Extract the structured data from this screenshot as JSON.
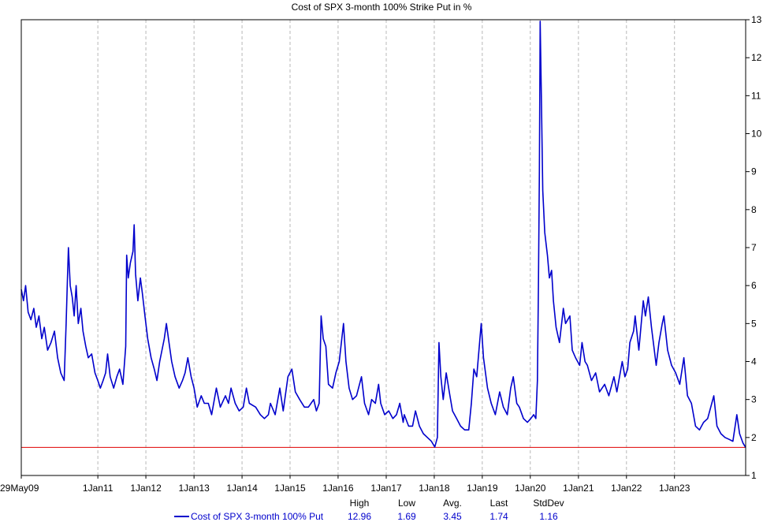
{
  "chart_data": {
    "type": "line",
    "title": "Cost of SPX 3-month 100% Strike Put in %",
    "xlabel": "",
    "ylabel": "",
    "x_range": [
      "2009-05-29",
      "2024-06-25"
    ],
    "ylim": [
      1,
      13
    ],
    "y_ticks": [
      1,
      2,
      3,
      4,
      5,
      6,
      7,
      8,
      9,
      10,
      11,
      12,
      13
    ],
    "y_axis_side": "right",
    "x_ticks": [
      {
        "date": "2009-05-29",
        "label": "29May09"
      },
      {
        "date": "2011-01-01",
        "label": "1Jan11"
      },
      {
        "date": "2012-01-01",
        "label": "1Jan12"
      },
      {
        "date": "2013-01-01",
        "label": "1Jan13"
      },
      {
        "date": "2014-01-01",
        "label": "1Jan14"
      },
      {
        "date": "2015-01-01",
        "label": "1Jan15"
      },
      {
        "date": "2016-01-01",
        "label": "1Jan16"
      },
      {
        "date": "2017-01-01",
        "label": "1Jan17"
      },
      {
        "date": "2018-01-01",
        "label": "1Jan18"
      },
      {
        "date": "2019-01-01",
        "label": "1Jan19"
      },
      {
        "date": "2020-01-01",
        "label": "1Jan20"
      },
      {
        "date": "2021-01-01",
        "label": "1Jan21"
      },
      {
        "date": "2022-01-01",
        "label": "1Jan22"
      },
      {
        "date": "2023-01-01",
        "label": "1Jan23"
      }
    ],
    "grid": "vertical-dashed",
    "reference_line": {
      "value": 1.74,
      "color": "#e00000"
    },
    "series": [
      {
        "name": "Cost of SPX 3-month 100% Put",
        "color": "#0000cc",
        "points": [
          [
            "2009-05-29",
            5.9
          ],
          [
            "2009-06-15",
            5.6
          ],
          [
            "2009-07-01",
            6.0
          ],
          [
            "2009-07-20",
            5.3
          ],
          [
            "2009-08-10",
            5.1
          ],
          [
            "2009-09-01",
            5.4
          ],
          [
            "2009-09-20",
            4.9
          ],
          [
            "2009-10-10",
            5.2
          ],
          [
            "2009-11-01",
            4.6
          ],
          [
            "2009-11-20",
            4.9
          ],
          [
            "2009-12-15",
            4.3
          ],
          [
            "2010-01-10",
            4.5
          ],
          [
            "2010-02-05",
            4.8
          ],
          [
            "2010-03-01",
            4.1
          ],
          [
            "2010-03-25",
            3.7
          ],
          [
            "2010-04-20",
            3.5
          ],
          [
            "2010-05-05",
            5.0
          ],
          [
            "2010-05-15",
            6.2
          ],
          [
            "2010-05-22",
            7.0
          ],
          [
            "2010-06-05",
            6.0
          ],
          [
            "2010-06-20",
            5.7
          ],
          [
            "2010-07-05",
            5.2
          ],
          [
            "2010-07-20",
            6.0
          ],
          [
            "2010-08-05",
            5.0
          ],
          [
            "2010-08-25",
            5.4
          ],
          [
            "2010-09-10",
            4.8
          ],
          [
            "2010-10-01",
            4.4
          ],
          [
            "2010-10-20",
            4.1
          ],
          [
            "2010-11-15",
            4.2
          ],
          [
            "2010-12-10",
            3.7
          ],
          [
            "2011-01-01",
            3.5
          ],
          [
            "2011-01-20",
            3.3
          ],
          [
            "2011-02-10",
            3.5
          ],
          [
            "2011-03-01",
            3.7
          ],
          [
            "2011-03-16",
            4.2
          ],
          [
            "2011-04-05",
            3.6
          ],
          [
            "2011-05-01",
            3.3
          ],
          [
            "2011-05-25",
            3.6
          ],
          [
            "2011-06-15",
            3.8
          ],
          [
            "2011-07-10",
            3.4
          ],
          [
            "2011-08-01",
            4.4
          ],
          [
            "2011-08-08",
            6.8
          ],
          [
            "2011-08-20",
            6.2
          ],
          [
            "2011-09-05",
            6.6
          ],
          [
            "2011-09-25",
            6.9
          ],
          [
            "2011-10-04",
            7.6
          ],
          [
            "2011-10-15",
            6.3
          ],
          [
            "2011-11-01",
            5.6
          ],
          [
            "2011-11-20",
            6.2
          ],
          [
            "2011-12-05",
            5.8
          ],
          [
            "2011-12-25",
            5.2
          ],
          [
            "2012-01-15",
            4.6
          ],
          [
            "2012-02-10",
            4.1
          ],
          [
            "2012-03-05",
            3.8
          ],
          [
            "2012-03-25",
            3.5
          ],
          [
            "2012-04-15",
            4.0
          ],
          [
            "2012-05-20",
            4.6
          ],
          [
            "2012-06-05",
            5.0
          ],
          [
            "2012-06-25",
            4.5
          ],
          [
            "2012-07-15",
            4.0
          ],
          [
            "2012-08-10",
            3.6
          ],
          [
            "2012-09-10",
            3.3
          ],
          [
            "2012-10-05",
            3.5
          ],
          [
            "2012-10-25",
            3.7
          ],
          [
            "2012-11-15",
            4.1
          ],
          [
            "2012-12-10",
            3.6
          ],
          [
            "2013-01-01",
            3.3
          ],
          [
            "2013-01-25",
            2.8
          ],
          [
            "2013-02-25",
            3.1
          ],
          [
            "2013-03-20",
            2.9
          ],
          [
            "2013-04-20",
            2.9
          ],
          [
            "2013-05-15",
            2.6
          ],
          [
            "2013-06-20",
            3.3
          ],
          [
            "2013-07-20",
            2.8
          ],
          [
            "2013-08-28",
            3.1
          ],
          [
            "2013-09-20",
            2.9
          ],
          [
            "2013-10-09",
            3.3
          ],
          [
            "2013-11-10",
            2.9
          ],
          [
            "2013-12-10",
            2.7
          ],
          [
            "2014-01-10",
            2.8
          ],
          [
            "2014-02-03",
            3.3
          ],
          [
            "2014-02-25",
            2.9
          ],
          [
            "2014-04-15",
            2.8
          ],
          [
            "2014-05-20",
            2.6
          ],
          [
            "2014-06-20",
            2.5
          ],
          [
            "2014-07-20",
            2.6
          ],
          [
            "2014-08-05",
            2.9
          ],
          [
            "2014-09-10",
            2.6
          ],
          [
            "2014-10-15",
            3.3
          ],
          [
            "2014-11-10",
            2.7
          ],
          [
            "2014-12-16",
            3.6
          ],
          [
            "2015-01-15",
            3.8
          ],
          [
            "2015-02-10",
            3.2
          ],
          [
            "2015-03-15",
            3.0
          ],
          [
            "2015-04-20",
            2.8
          ],
          [
            "2015-05-20",
            2.8
          ],
          [
            "2015-06-30",
            3.0
          ],
          [
            "2015-07-20",
            2.7
          ],
          [
            "2015-08-10",
            2.9
          ],
          [
            "2015-08-25",
            5.2
          ],
          [
            "2015-09-10",
            4.6
          ],
          [
            "2015-09-30",
            4.4
          ],
          [
            "2015-10-20",
            3.4
          ],
          [
            "2015-11-20",
            3.3
          ],
          [
            "2015-12-15",
            3.7
          ],
          [
            "2016-01-10",
            4.0
          ],
          [
            "2016-02-11",
            5.0
          ],
          [
            "2016-03-01",
            4.0
          ],
          [
            "2016-03-25",
            3.3
          ],
          [
            "2016-04-20",
            3.0
          ],
          [
            "2016-05-20",
            3.1
          ],
          [
            "2016-06-27",
            3.6
          ],
          [
            "2016-07-20",
            2.9
          ],
          [
            "2016-08-20",
            2.6
          ],
          [
            "2016-09-12",
            3.0
          ],
          [
            "2016-10-10",
            2.9
          ],
          [
            "2016-11-04",
            3.4
          ],
          [
            "2016-11-20",
            2.9
          ],
          [
            "2016-12-20",
            2.6
          ],
          [
            "2017-01-20",
            2.7
          ],
          [
            "2017-02-20",
            2.5
          ],
          [
            "2017-03-20",
            2.6
          ],
          [
            "2017-04-14",
            2.9
          ],
          [
            "2017-05-10",
            2.4
          ],
          [
            "2017-05-18",
            2.6
          ],
          [
            "2017-06-20",
            2.3
          ],
          [
            "2017-07-20",
            2.3
          ],
          [
            "2017-08-11",
            2.7
          ],
          [
            "2017-09-10",
            2.3
          ],
          [
            "2017-10-10",
            2.1
          ],
          [
            "2017-11-10",
            2.0
          ],
          [
            "2017-12-10",
            1.9
          ],
          [
            "2018-01-05",
            1.75
          ],
          [
            "2018-01-25",
            2.0
          ],
          [
            "2018-02-06",
            4.5
          ],
          [
            "2018-02-20",
            3.6
          ],
          [
            "2018-03-10",
            3.0
          ],
          [
            "2018-04-02",
            3.7
          ],
          [
            "2018-04-25",
            3.2
          ],
          [
            "2018-05-20",
            2.7
          ],
          [
            "2018-06-20",
            2.5
          ],
          [
            "2018-07-20",
            2.3
          ],
          [
            "2018-08-20",
            2.2
          ],
          [
            "2018-09-20",
            2.2
          ],
          [
            "2018-10-10",
            2.9
          ],
          [
            "2018-10-29",
            3.8
          ],
          [
            "2018-11-20",
            3.6
          ],
          [
            "2018-12-24",
            5.0
          ],
          [
            "2019-01-10",
            4.1
          ],
          [
            "2019-02-10",
            3.3
          ],
          [
            "2019-03-10",
            2.9
          ],
          [
            "2019-04-10",
            2.6
          ],
          [
            "2019-05-13",
            3.2
          ],
          [
            "2019-06-10",
            2.8
          ],
          [
            "2019-07-10",
            2.6
          ],
          [
            "2019-08-05",
            3.3
          ],
          [
            "2019-08-25",
            3.6
          ],
          [
            "2019-09-20",
            2.9
          ],
          [
            "2019-10-10",
            2.8
          ],
          [
            "2019-11-10",
            2.5
          ],
          [
            "2019-12-10",
            2.4
          ],
          [
            "2020-01-05",
            2.5
          ],
          [
            "2020-01-27",
            2.6
          ],
          [
            "2020-02-12",
            2.5
          ],
          [
            "2020-02-24",
            3.5
          ],
          [
            "2020-03-03",
            6.0
          ],
          [
            "2020-03-10",
            9.0
          ],
          [
            "2020-03-16",
            12.96
          ],
          [
            "2020-03-25",
            11.0
          ],
          [
            "2020-04-05",
            8.5
          ],
          [
            "2020-04-20",
            7.4
          ],
          [
            "2020-05-10",
            6.8
          ],
          [
            "2020-05-25",
            6.2
          ],
          [
            "2020-06-11",
            6.4
          ],
          [
            "2020-06-25",
            5.6
          ],
          [
            "2020-07-15",
            4.9
          ],
          [
            "2020-08-10",
            4.5
          ],
          [
            "2020-09-08",
            5.4
          ],
          [
            "2020-09-25",
            5.0
          ],
          [
            "2020-10-28",
            5.2
          ],
          [
            "2020-11-15",
            4.3
          ],
          [
            "2020-12-10",
            4.1
          ],
          [
            "2021-01-10",
            3.9
          ],
          [
            "2021-01-28",
            4.5
          ],
          [
            "2021-02-20",
            4.0
          ],
          [
            "2021-03-10",
            3.9
          ],
          [
            "2021-04-10",
            3.5
          ],
          [
            "2021-05-12",
            3.7
          ],
          [
            "2021-06-10",
            3.2
          ],
          [
            "2021-07-19",
            3.4
          ],
          [
            "2021-08-20",
            3.1
          ],
          [
            "2021-09-28",
            3.6
          ],
          [
            "2021-10-20",
            3.2
          ],
          [
            "2021-11-30",
            4.0
          ],
          [
            "2021-12-20",
            3.6
          ],
          [
            "2022-01-10",
            3.8
          ],
          [
            "2022-01-27",
            4.5
          ],
          [
            "2022-02-24",
            4.8
          ],
          [
            "2022-03-08",
            5.2
          ],
          [
            "2022-04-05",
            4.3
          ],
          [
            "2022-05-09",
            5.6
          ],
          [
            "2022-05-25",
            5.2
          ],
          [
            "2022-06-16",
            5.7
          ],
          [
            "2022-07-10",
            4.9
          ],
          [
            "2022-08-15",
            3.9
          ],
          [
            "2022-09-05",
            4.5
          ],
          [
            "2022-09-30",
            5.0
          ],
          [
            "2022-10-13",
            5.2
          ],
          [
            "2022-11-10",
            4.3
          ],
          [
            "2022-12-10",
            3.9
          ],
          [
            "2023-01-10",
            3.7
          ],
          [
            "2023-02-10",
            3.4
          ],
          [
            "2023-03-13",
            4.1
          ],
          [
            "2023-04-10",
            3.1
          ],
          [
            "2023-05-10",
            2.9
          ],
          [
            "2023-06-10",
            2.3
          ],
          [
            "2023-07-10",
            2.2
          ],
          [
            "2023-08-10",
            2.4
          ],
          [
            "2023-09-10",
            2.5
          ],
          [
            "2023-10-27",
            3.1
          ],
          [
            "2023-11-20",
            2.3
          ],
          [
            "2023-12-20",
            2.1
          ],
          [
            "2024-01-20",
            2.0
          ],
          [
            "2024-02-20",
            1.95
          ],
          [
            "2024-03-20",
            1.9
          ],
          [
            "2024-04-19",
            2.6
          ],
          [
            "2024-05-10",
            2.1
          ],
          [
            "2024-06-05",
            1.85
          ],
          [
            "2024-06-25",
            1.74
          ]
        ]
      }
    ]
  },
  "stats": {
    "headers": [
      "High",
      "Low",
      "Avg.",
      "Last",
      "StdDev"
    ],
    "values": [
      "12.96",
      "1.69",
      "3.45",
      "1.74",
      "1.16"
    ]
  }
}
